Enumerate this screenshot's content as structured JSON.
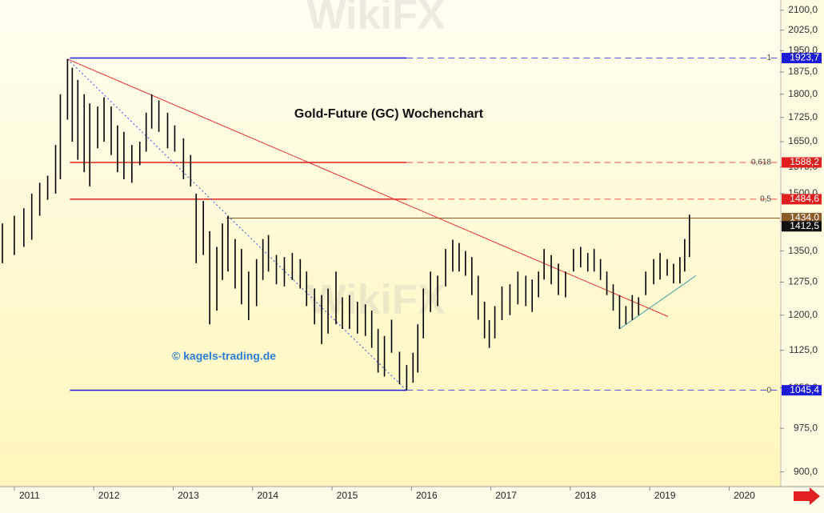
{
  "chart_data": {
    "type": "hlbar",
    "title": "Gold-Future (GC) Wochenchart",
    "credit": "© kagels-trading.de",
    "watermark": "WikiFX",
    "log": true,
    "color": "#000000",
    "xlim": [
      2010.82,
      2020.64
    ],
    "xticks": [
      2011,
      2012,
      2013,
      2014,
      2015,
      2016,
      2017,
      2018,
      2019,
      2020
    ],
    "ylim": [
      876,
      2140
    ],
    "yticks": [
      {
        "value": 2100,
        "label": "2100,0"
      },
      {
        "value": 2025,
        "label": "2025,0"
      },
      {
        "value": 1950,
        "label": "1950,0"
      },
      {
        "value": 1875,
        "label": "1875,0"
      },
      {
        "value": 1800,
        "label": "1800,0"
      },
      {
        "value": 1725,
        "label": "1725,0"
      },
      {
        "value": 1650,
        "label": "1650,0"
      },
      {
        "value": 1575,
        "label": "1575,0"
      },
      {
        "value": 1500,
        "label": "1500,0"
      },
      {
        "value": 1425,
        "label": "1425,0"
      },
      {
        "value": 1350,
        "label": "1350,0"
      },
      {
        "value": 1275,
        "label": "1275,0"
      },
      {
        "value": 1200,
        "label": "1200,0"
      },
      {
        "value": 1125,
        "label": "1125,0"
      },
      {
        "value": 1050,
        "label": "1050,0"
      },
      {
        "value": 975,
        "label": "975,0"
      },
      {
        "value": 900,
        "label": "900,0"
      }
    ],
    "x": [
      2010.85,
      2011.0,
      2011.12,
      2011.22,
      2011.32,
      2011.42,
      2011.52,
      2011.58,
      2011.67,
      2011.73,
      2011.8,
      2011.88,
      2011.95,
      2012.05,
      2012.13,
      2012.22,
      2012.3,
      2012.38,
      2012.48,
      2012.58,
      2012.66,
      2012.73,
      2012.82,
      2012.93,
      2013.02,
      2013.13,
      2013.22,
      2013.29,
      2013.38,
      2013.46,
      2013.55,
      2013.62,
      2013.69,
      2013.78,
      2013.86,
      2013.95,
      2014.05,
      2014.13,
      2014.2,
      2014.3,
      2014.4,
      2014.5,
      2014.6,
      2014.68,
      2014.78,
      2014.87,
      2014.95,
      2015.05,
      2015.13,
      2015.22,
      2015.32,
      2015.42,
      2015.5,
      2015.58,
      2015.66,
      2015.75,
      2015.85,
      2015.94,
      2016.02,
      2016.08,
      2016.15,
      2016.24,
      2016.33,
      2016.43,
      2016.52,
      2016.6,
      2016.68,
      2016.76,
      2016.84,
      2016.92,
      2016.98,
      2017.05,
      2017.14,
      2017.24,
      2017.34,
      2017.44,
      2017.52,
      2017.6,
      2017.67,
      2017.76,
      2017.85,
      2017.94,
      2018.04,
      2018.13,
      2018.22,
      2018.3,
      2018.38,
      2018.46,
      2018.54,
      2018.62,
      2018.7,
      2018.78,
      2018.86,
      2018.95,
      2019.05,
      2019.13,
      2019.22,
      2019.3,
      2019.38,
      2019.44,
      2019.5
    ],
    "high": [
      1420,
      1440,
      1460,
      1500,
      1530,
      1550,
      1640,
      1800,
      1920,
      1890,
      1848,
      1800,
      1770,
      1760,
      1790,
      1760,
      1700,
      1680,
      1640,
      1650,
      1740,
      1800,
      1780,
      1740,
      1700,
      1660,
      1610,
      1500,
      1480,
      1400,
      1360,
      1420,
      1440,
      1380,
      1355,
      1300,
      1330,
      1380,
      1390,
      1340,
      1335,
      1345,
      1330,
      1300,
      1260,
      1245,
      1260,
      1300,
      1240,
      1245,
      1230,
      1224,
      1210,
      1170,
      1155,
      1190,
      1122,
      1095,
      1120,
      1180,
      1260,
      1300,
      1290,
      1355,
      1378,
      1370,
      1350,
      1335,
      1290,
      1230,
      1189,
      1220,
      1265,
      1270,
      1300,
      1290,
      1281,
      1300,
      1355,
      1340,
      1319,
      1300,
      1355,
      1360,
      1345,
      1355,
      1330,
      1300,
      1270,
      1245,
      1220,
      1245,
      1240,
      1300,
      1330,
      1345,
      1330,
      1319,
      1335,
      1380,
      1443
    ],
    "low": [
      1320,
      1340,
      1360,
      1378,
      1440,
      1483,
      1500,
      1540,
      1718,
      1650,
      1596,
      1560,
      1520,
      1630,
      1650,
      1610,
      1560,
      1540,
      1530,
      1580,
      1620,
      1690,
      1680,
      1630,
      1620,
      1540,
      1520,
      1320,
      1340,
      1180,
      1210,
      1280,
      1300,
      1260,
      1224,
      1189,
      1220,
      1280,
      1300,
      1270,
      1265,
      1280,
      1260,
      1220,
      1180,
      1138,
      1160,
      1180,
      1170,
      1170,
      1160,
      1155,
      1130,
      1080,
      1072,
      1120,
      1057,
      1045,
      1060,
      1080,
      1150,
      1207,
      1220,
      1265,
      1300,
      1300,
      1290,
      1245,
      1190,
      1150,
      1130,
      1150,
      1189,
      1200,
      1224,
      1220,
      1207,
      1240,
      1281,
      1270,
      1245,
      1240,
      1300,
      1310,
      1300,
      1300,
      1280,
      1245,
      1210,
      1170,
      1180,
      1189,
      1200,
      1245,
      1270,
      1281,
      1290,
      1272,
      1272,
      1300,
      1335
    ],
    "levels": [
      {
        "value": 1923.7,
        "value_label": "1923,7",
        "ratio_label": "1",
        "color": "#1c1cd6",
        "start": 2011.7,
        "dash_from": 2015.94
      },
      {
        "value": 1588.2,
        "value_label": "1588,2",
        "ratio_label": "0,618",
        "color": "#e02020",
        "start": 2011.7,
        "dash_from": 2015.94
      },
      {
        "value": 1484.6,
        "value_label": "1484,6",
        "ratio_label": "0,5",
        "color": "#e02020",
        "start": 2011.7,
        "dash_from": 2015.94
      },
      {
        "value": 1434.0,
        "value_label": "1434,0",
        "color": "#8b5a2b",
        "start": 2013.67
      },
      {
        "value": 1412.5,
        "value_label": "1412,5",
        "color": "#111111"
      },
      {
        "value": 1045.4,
        "value_label": "1045,4",
        "ratio_label": "0",
        "color": "#1c1cd6",
        "start": 2011.7,
        "dash_from": 2015.94
      }
    ],
    "trendlines": [
      {
        "x": [
          2011.67,
          2019.23
        ],
        "y": [
          1920,
          1197
        ],
        "color": "#e03030",
        "style": "solid"
      },
      {
        "x": [
          2011.67,
          2015.94
        ],
        "y": [
          1920,
          1045
        ],
        "color": "#3050d0",
        "style": "dotted"
      },
      {
        "x": [
          2018.62,
          2019.58
        ],
        "y": [
          1170,
          1290
        ],
        "color": "#40a0a0",
        "style": "solid"
      }
    ]
  }
}
